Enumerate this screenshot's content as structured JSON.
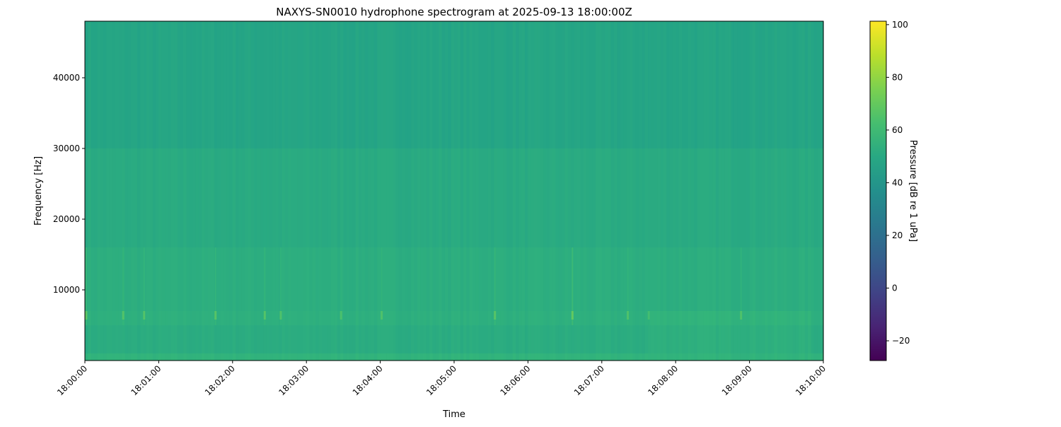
{
  "chart_data": {
    "type": "heatmap",
    "title": "NAXYS-SN0010 hydrophone spectrogram at 2025-09-13 18:00:00Z",
    "xlabel": "Time",
    "ylabel": "Frequency [Hz]",
    "colorbar_label": "Pressure [dB re 1 uPa]",
    "colormap": "viridis",
    "xlim": [
      "18:00:00",
      "18:10:00"
    ],
    "ylim": [
      0,
      48000
    ],
    "clim": [
      -27.5,
      101.3
    ],
    "x_ticks": [
      "18:00:00",
      "18:01:00",
      "18:02:00",
      "18:03:00",
      "18:04:00",
      "18:05:00",
      "18:06:00",
      "18:07:00",
      "18:08:00",
      "18:09:00",
      "18:10:00"
    ],
    "y_ticks": [
      10000,
      20000,
      30000,
      40000
    ],
    "y_tick_labels": [
      "10000",
      "20000",
      "30000",
      "40000"
    ],
    "colorbar_ticks": [
      -20,
      0,
      20,
      40,
      60,
      80,
      100
    ],
    "colorbar_tick_labels": [
      "−20",
      "0",
      "20",
      "40",
      "60",
      "80",
      "100"
    ],
    "frequency_bands_hz": [
      [
        0,
        1000
      ],
      [
        1000,
        5000
      ],
      [
        5000,
        7000
      ],
      [
        7000,
        16000
      ],
      [
        16000,
        30000
      ],
      [
        30000,
        48000
      ]
    ],
    "band_levels_db": [
      56,
      52,
      54,
      53,
      51,
      48
    ],
    "transients": [
      {
        "time": "18:00:00",
        "level_db": 68
      },
      {
        "time": "18:00:30",
        "level_db": 66
      },
      {
        "time": "18:00:47",
        "level_db": 66
      },
      {
        "time": "18:01:45",
        "level_db": 67
      },
      {
        "time": "18:02:25",
        "level_db": 66
      },
      {
        "time": "18:02:38",
        "level_db": 65
      },
      {
        "time": "18:03:27",
        "level_db": 64
      },
      {
        "time": "18:04:00",
        "level_db": 65
      },
      {
        "time": "18:05:32",
        "level_db": 67
      },
      {
        "time": "18:06:35",
        "level_db": 70
      },
      {
        "time": "18:07:20",
        "level_db": 65
      },
      {
        "time": "18:07:37",
        "level_db": 62
      },
      {
        "time": "18:08:52",
        "level_db": 65
      }
    ],
    "grid": false
  }
}
